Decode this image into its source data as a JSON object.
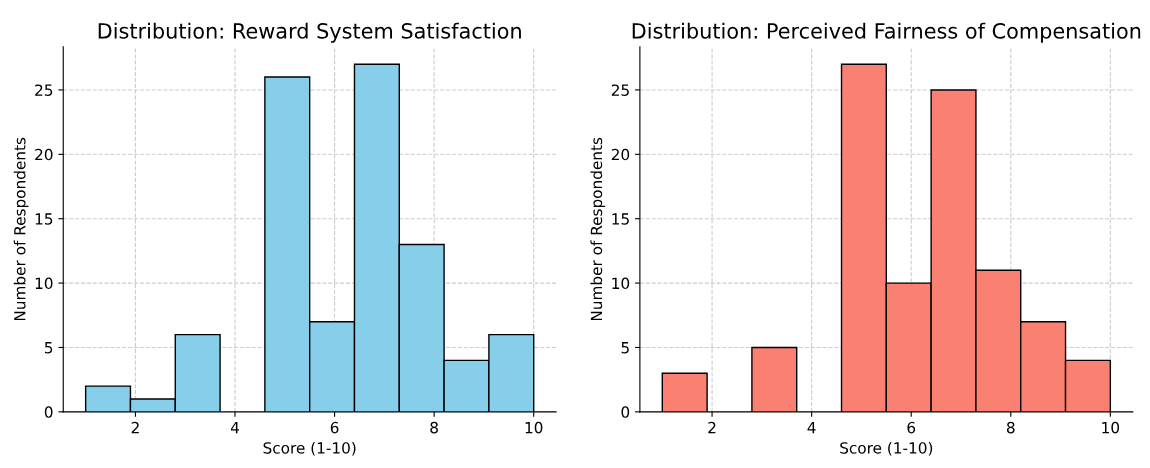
{
  "chart_data": [
    {
      "type": "histogram",
      "title": "Distribution: Reward System Satisfaction",
      "xlabel": "Score (1-10)",
      "ylabel": "Number of Respondents",
      "bins": [
        1,
        1.9,
        2.8,
        3.7,
        4.6,
        5.5,
        6.4,
        7.3,
        8.2,
        9.1,
        10
      ],
      "values": [
        2,
        1,
        6,
        0,
        26,
        7,
        27,
        13,
        4,
        6
      ],
      "color": "#87ceeb",
      "xlim": [
        0.55,
        10.45
      ],
      "ylim": [
        0,
        28.35
      ],
      "xticks": [
        2,
        4,
        6,
        8,
        10
      ],
      "yticks": [
        0,
        5,
        10,
        15,
        20,
        25
      ],
      "grid": true
    },
    {
      "type": "histogram",
      "title": "Distribution: Perceived Fairness of Compensation",
      "xlabel": "Score (1-10)",
      "ylabel": "Number of Respondents",
      "bins": [
        1,
        1.9,
        2.8,
        3.7,
        4.6,
        5.5,
        6.4,
        7.3,
        8.2,
        9.1,
        10
      ],
      "values": [
        3,
        0,
        5,
        0,
        27,
        10,
        25,
        11,
        7,
        4
      ],
      "color": "#fa8072",
      "xlim": [
        0.55,
        10.45
      ],
      "ylim": [
        0,
        28.35
      ],
      "xticks": [
        2,
        4,
        6,
        8,
        10
      ],
      "yticks": [
        0,
        5,
        10,
        15,
        20,
        25
      ],
      "grid": true
    }
  ]
}
